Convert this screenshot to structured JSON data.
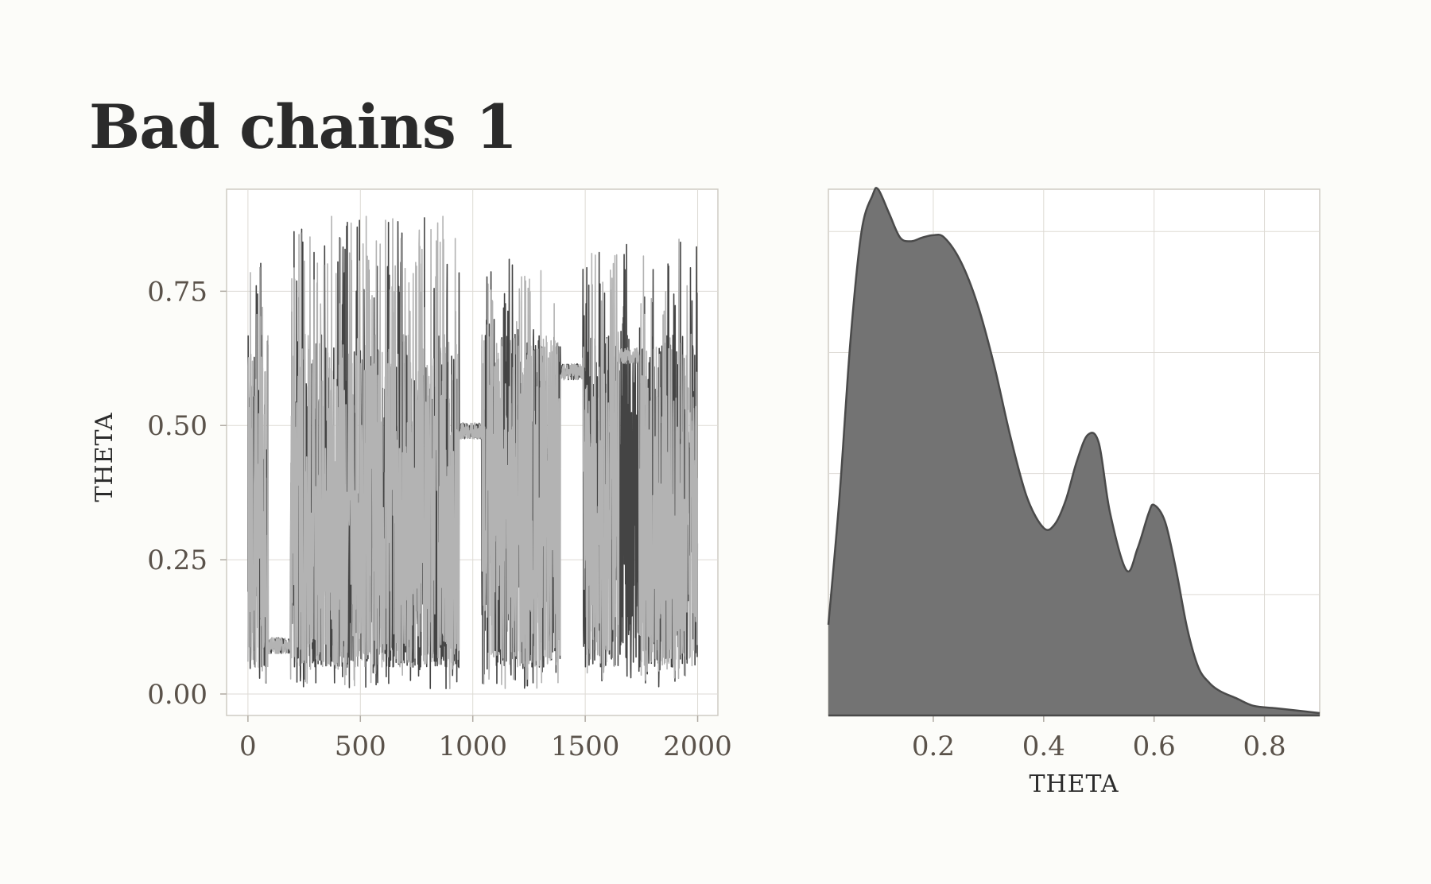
{
  "title": "Bad chains 1",
  "colors": {
    "background": "#fcfcf9",
    "panel": "#ffffff",
    "grid": "#dddad4",
    "chain_dark": "#444444",
    "chain_light": "#b3b3b3",
    "density_fill": "#737373",
    "density_line": "#4a4a4a",
    "tick_text": "#5a524a",
    "title_text": "#2b2b2b"
  },
  "chart_data": [
    {
      "type": "line",
      "name": "trace",
      "ylabel": "THETA",
      "xlabel": "",
      "xlim": [
        -95,
        2090
      ],
      "ylim": [
        -0.04,
        0.94
      ],
      "xticks": [
        0,
        500,
        1000,
        1500,
        2000
      ],
      "xtick_labels": [
        "0",
        "500",
        "1000",
        "1500",
        "2000"
      ],
      "yticks": [
        0.0,
        0.25,
        0.5,
        0.75
      ],
      "ytick_labels": [
        "0.00",
        "0.25",
        "0.50",
        "0.75"
      ],
      "grid": true,
      "legend": "none",
      "n_iterations": 2000,
      "segments": [
        {
          "start": 0,
          "end": 90,
          "mode": "mix",
          "low": 0.01,
          "high": 0.86
        },
        {
          "start": 90,
          "end": 190,
          "mode": "stuck",
          "level": 0.09,
          "jitter": 0.015
        },
        {
          "start": 190,
          "end": 940,
          "mode": "mix",
          "low": 0.01,
          "high": 0.89
        },
        {
          "start": 940,
          "end": 1040,
          "mode": "stuck",
          "level": 0.49,
          "jitter": 0.015
        },
        {
          "start": 1040,
          "end": 1390,
          "mode": "mix",
          "low": 0.01,
          "high": 0.81
        },
        {
          "start": 1390,
          "end": 1490,
          "mode": "stuck",
          "level": 0.6,
          "jitter": 0.015
        },
        {
          "start": 1490,
          "end": 1740,
          "mode": "mix",
          "low": 0.02,
          "high": 0.84
        },
        {
          "start": 1650,
          "end": 1740,
          "mode": "stuck-light",
          "level": 0.63,
          "jitter": 0.015
        },
        {
          "start": 1740,
          "end": 2000,
          "mode": "mix",
          "low": 0.01,
          "high": 0.85
        }
      ],
      "series": [
        {
          "color": "#444444"
        },
        {
          "color": "#b3b3b3"
        }
      ]
    },
    {
      "type": "area",
      "name": "density",
      "xlabel": "THETA",
      "ylabel": "",
      "xlim": [
        0.01,
        0.9
      ],
      "ylim": [
        0,
        4.35
      ],
      "xticks": [
        0.2,
        0.4,
        0.6,
        0.8
      ],
      "xtick_labels": [
        "0.2",
        "0.4",
        "0.6",
        "0.8"
      ],
      "grid": true,
      "legend": "none",
      "x": [
        0.01,
        0.03,
        0.05,
        0.07,
        0.09,
        0.1,
        0.12,
        0.14,
        0.16,
        0.18,
        0.2,
        0.22,
        0.25,
        0.28,
        0.31,
        0.34,
        0.37,
        0.4,
        0.42,
        0.44,
        0.46,
        0.48,
        0.5,
        0.52,
        0.55,
        0.57,
        0.59,
        0.6,
        0.62,
        0.64,
        0.66,
        0.68,
        0.7,
        0.72,
        0.75,
        0.78,
        0.82,
        0.86,
        0.9
      ],
      "y": [
        0.75,
        1.8,
        3.1,
        4.0,
        4.3,
        4.35,
        4.15,
        3.95,
        3.92,
        3.95,
        3.97,
        3.95,
        3.75,
        3.4,
        2.9,
        2.3,
        1.8,
        1.55,
        1.58,
        1.78,
        2.1,
        2.32,
        2.25,
        1.68,
        1.2,
        1.38,
        1.67,
        1.74,
        1.6,
        1.2,
        0.72,
        0.4,
        0.27,
        0.2,
        0.14,
        0.08,
        0.06,
        0.04,
        0.02
      ]
    }
  ]
}
